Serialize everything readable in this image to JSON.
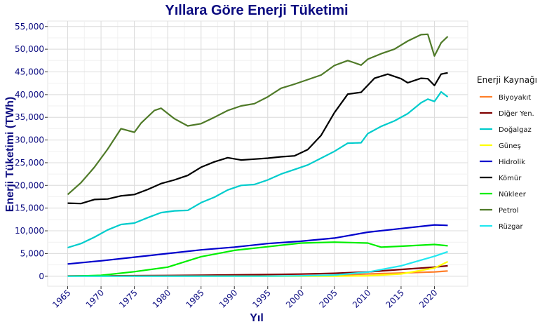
{
  "chart_data": {
    "type": "line",
    "title": "Yıllara Göre Enerji Tüketimi",
    "xlabel": "Yıl",
    "ylabel": "Enerji Tüketimi (TWh)",
    "xlim": [
      1962,
      2025
    ],
    "ylim": [
      -2200,
      56200
    ],
    "x_ticks": [
      1965,
      1970,
      1975,
      1980,
      1985,
      1990,
      1995,
      2000,
      2005,
      2010,
      2015,
      2020
    ],
    "y_ticks": [
      0,
      5000,
      10000,
      15000,
      20000,
      25000,
      30000,
      35000,
      40000,
      45000,
      50000,
      55000
    ],
    "y_tick_labels": [
      "0",
      "5,000",
      "10,000",
      "15,000",
      "20,000",
      "25,000",
      "30,000",
      "35,000",
      "40,000",
      "45,000",
      "50,000",
      "55,000"
    ],
    "grid": true,
    "legend": {
      "title": "Enerji Kaynağı",
      "position": "right"
    },
    "series": [
      {
        "name": "Biyoyakıt",
        "color": "#ff7f2a",
        "x": [
          1965,
          2000,
          2005,
          2010,
          2015,
          2020,
          2022
        ],
        "values": [
          0,
          50,
          200,
          500,
          700,
          950,
          1150
        ]
      },
      {
        "name": "Diğer Yen.",
        "color": "#800000",
        "x": [
          1965,
          1970,
          1975,
          1980,
          1985,
          1990,
          1995,
          2000,
          2005,
          2010,
          2015,
          2020,
          2022
        ],
        "values": [
          60,
          90,
          120,
          160,
          220,
          300,
          380,
          480,
          650,
          950,
          1500,
          2000,
          2300
        ]
      },
      {
        "name": "Doğalgaz",
        "color": "#00cccc",
        "x": [
          1965,
          1967,
          1969,
          1971,
          1973,
          1975,
          1977,
          1979,
          1981,
          1983,
          1985,
          1987,
          1989,
          1991,
          1993,
          1995,
          1997,
          1999,
          2001,
          2003,
          2005,
          2007,
          2009,
          2010,
          2012,
          2014,
          2016,
          2018,
          2019,
          2020,
          2021,
          2022
        ],
        "values": [
          6300,
          7200,
          8600,
          10200,
          11400,
          11700,
          12900,
          14000,
          14400,
          14500,
          16200,
          17400,
          19000,
          20000,
          20200,
          21200,
          22500,
          23500,
          24500,
          26000,
          27500,
          29300,
          29400,
          31400,
          33000,
          34200,
          35800,
          38200,
          39000,
          38500,
          40600,
          39500
        ]
      },
      {
        "name": "Güneş",
        "color": "#ffff00",
        "x": [
          1965,
          2005,
          2010,
          2015,
          2020,
          2022
        ],
        "values": [
          0,
          10,
          100,
          500,
          1800,
          3200
        ]
      },
      {
        "name": "Hidrolik",
        "color": "#0000cc",
        "x": [
          1965,
          1970,
          1975,
          1980,
          1985,
          1990,
          1995,
          2000,
          2005,
          2010,
          2015,
          2020,
          2022
        ],
        "values": [
          2700,
          3400,
          4200,
          5000,
          5800,
          6400,
          7200,
          7700,
          8400,
          9700,
          10500,
          11300,
          11200
        ]
      },
      {
        "name": "Kömür",
        "color": "#000000",
        "x": [
          1965,
          1967,
          1969,
          1971,
          1973,
          1975,
          1977,
          1979,
          1981,
          1983,
          1985,
          1987,
          1989,
          1991,
          1993,
          1995,
          1997,
          1999,
          2001,
          2003,
          2005,
          2007,
          2009,
          2011,
          2013,
          2015,
          2016,
          2018,
          2019,
          2020,
          2021,
          2022
        ],
        "values": [
          16100,
          16000,
          16900,
          17000,
          17700,
          18000,
          19100,
          20400,
          21200,
          22200,
          24000,
          25200,
          26100,
          25600,
          25800,
          26000,
          26300,
          26500,
          27900,
          31000,
          36000,
          40100,
          40500,
          43600,
          44500,
          43500,
          42600,
          43600,
          43500,
          42000,
          44500,
          44800
        ]
      },
      {
        "name": "Nükleer",
        "color": "#00ee00",
        "x": [
          1965,
          1970,
          1975,
          1980,
          1985,
          1990,
          1995,
          2000,
          2005,
          2010,
          2012,
          2015,
          2020,
          2022
        ],
        "values": [
          0,
          200,
          1000,
          2000,
          4300,
          5700,
          6500,
          7300,
          7500,
          7300,
          6400,
          6600,
          7000,
          6700
        ]
      },
      {
        "name": "Petrol",
        "color": "#4f7a28",
        "x": [
          1965,
          1967,
          1969,
          1971,
          1973,
          1975,
          1976,
          1978,
          1979,
          1981,
          1983,
          1985,
          1987,
          1989,
          1991,
          1993,
          1995,
          1997,
          1999,
          2001,
          2003,
          2005,
          2007,
          2008,
          2009,
          2010,
          2012,
          2014,
          2016,
          2018,
          2019,
          2020,
          2021,
          2022
        ],
        "values": [
          18000,
          20600,
          24000,
          28000,
          32500,
          31700,
          33700,
          36500,
          37000,
          34700,
          33100,
          33600,
          35000,
          36500,
          37500,
          38000,
          39500,
          41400,
          42300,
          43300,
          44300,
          46400,
          47500,
          47000,
          46500,
          47800,
          49000,
          50000,
          51800,
          53200,
          53300,
          48500,
          51400,
          52800
        ]
      },
      {
        "name": "Rüzgar",
        "color": "#22e8f0",
        "x": [
          1965,
          1995,
          2000,
          2005,
          2010,
          2015,
          2020,
          2022
        ],
        "values": [
          0,
          10,
          80,
          250,
          900,
          2300,
          4400,
          5400
        ]
      }
    ]
  }
}
